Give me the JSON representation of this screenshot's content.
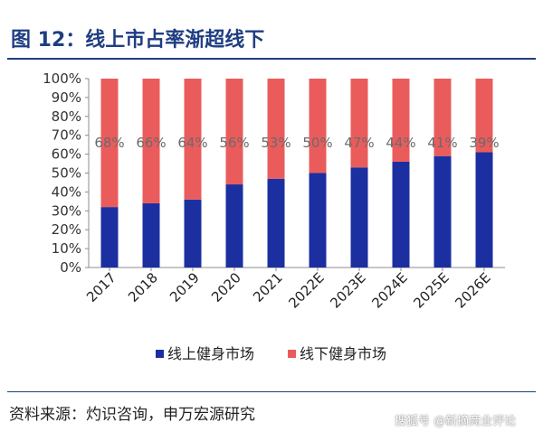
{
  "title": "图 12：线上市占率渐超线下",
  "source": "资料来源：灼识咨询，申万宏源研究",
  "watermark": "搜狐号 @新摘商业评论",
  "colors": {
    "title": "#1f3d82",
    "online": "#1c2fa0",
    "offline": "#ea5c5c",
    "label": "#6b6b6b"
  },
  "chart_data": {
    "type": "bar",
    "stacked": true,
    "categories": [
      "2017",
      "2018",
      "2019",
      "2020",
      "2021",
      "2022E",
      "2023E",
      "2024E",
      "2025E",
      "2026E"
    ],
    "series": [
      {
        "name": "线上健身市场",
        "values": [
          32,
          34,
          36,
          44,
          47,
          50,
          53,
          56,
          59,
          61
        ]
      },
      {
        "name": "线下健身市场",
        "values": [
          68,
          66,
          64,
          56,
          53,
          50,
          47,
          44,
          41,
          39
        ]
      }
    ],
    "data_labels": [
      "68%",
      "66%",
      "64%",
      "56%",
      "53%",
      "50%",
      "47%",
      "44%",
      "41%",
      "39%"
    ],
    "ylim": [
      0,
      100
    ],
    "yticks": [
      "0%",
      "10%",
      "20%",
      "30%",
      "40%",
      "50%",
      "60%",
      "70%",
      "80%",
      "90%",
      "100%"
    ],
    "legend_position": "bottom",
    "grid": false
  }
}
